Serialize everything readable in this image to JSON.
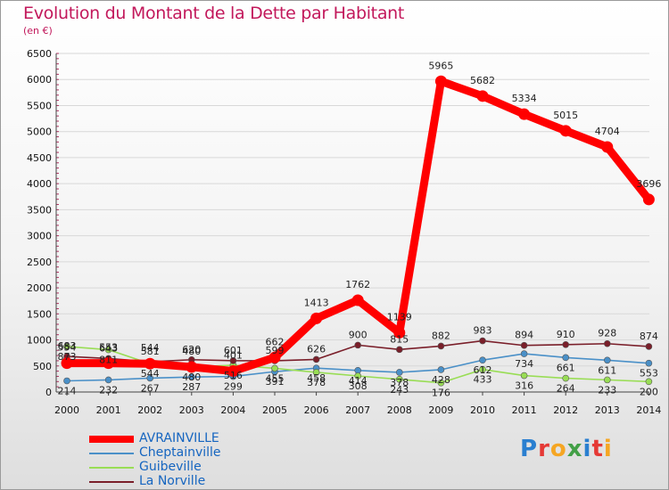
{
  "title": "Evolution du Montant de la Dette par Habitant",
  "unit": "(en €)",
  "logo": "Proxiti",
  "chart_data": {
    "type": "line",
    "x": [
      "2000",
      "2001",
      "2002",
      "2003",
      "2004",
      "2005",
      "2006",
      "2007",
      "2008",
      "2009",
      "2010",
      "2011",
      "2012",
      "2013",
      "2014"
    ],
    "ylim": [
      0,
      6500
    ],
    "yticks": [
      0,
      500,
      1000,
      1500,
      2000,
      2500,
      3000,
      3500,
      4000,
      4500,
      5000,
      5500,
      6000,
      6500
    ],
    "grid": true,
    "legend_position": "bottom-left",
    "series": [
      {
        "name": "AVRAINVILLE",
        "color": "#ff0000",
        "values": [
          554,
          553,
          544,
          480,
          401,
          662,
          1413,
          1762,
          1139,
          5965,
          5682,
          5334,
          5015,
          4704,
          3696
        ]
      },
      {
        "name": "Cheptainville",
        "color": "#4a90c8",
        "values": [
          214,
          232,
          267,
          287,
          299,
          391,
          458,
          414,
          378,
          428,
          612,
          734,
          661,
          611,
          553
        ]
      },
      {
        "name": "Guibeville",
        "color": "#99dd55",
        "values": [
          873,
          811,
          544,
          480,
          516,
          455,
          378,
          308,
          243,
          176,
          433,
          316,
          264,
          233,
          200
        ]
      },
      {
        "name": "La Norville",
        "color": "#7a1f2a",
        "values": [
          683,
          643,
          581,
          620,
          601,
          599,
          626,
          900,
          815,
          882,
          983,
          894,
          910,
          928,
          874
        ]
      }
    ]
  }
}
